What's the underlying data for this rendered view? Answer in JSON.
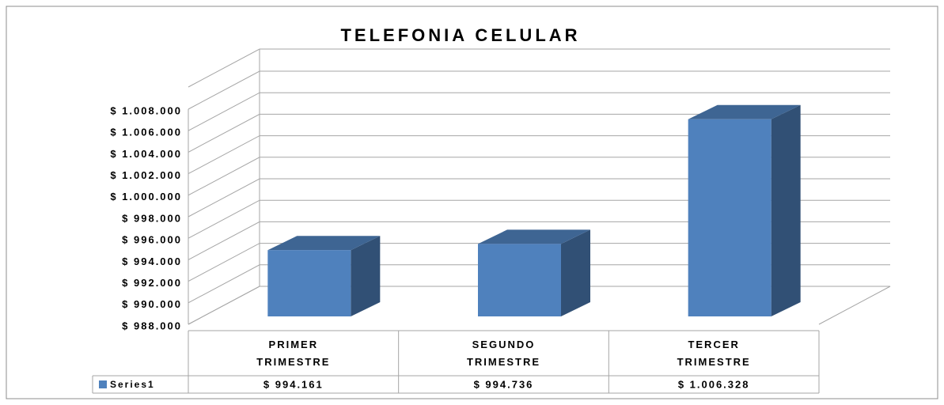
{
  "chart_data": {
    "type": "bar3d",
    "title": "TELEFONIA CELULAR",
    "categories": [
      "PRIMER TRIMESTRE",
      "SEGUNDO TRIMESTRE",
      "TERCER TRIMESTRE"
    ],
    "series": [
      {
        "name": "Series1",
        "color": "#4f81bd",
        "values": [
          994161,
          994736,
          1006328
        ],
        "value_labels": [
          "$ 994.161",
          "$ 994.736",
          "$ 1.006.328"
        ]
      }
    ],
    "ylim": [
      988000,
      1008000
    ],
    "yticks": [
      {
        "value": 988000,
        "label": "$ 988.000"
      },
      {
        "value": 990000,
        "label": "$ 990.000"
      },
      {
        "value": 992000,
        "label": "$ 992.000"
      },
      {
        "value": 994000,
        "label": "$ 994.000"
      },
      {
        "value": 996000,
        "label": "$ 996.000"
      },
      {
        "value": 998000,
        "label": "$ 998.000"
      },
      {
        "value": 1000000,
        "label": "$ 1.000.000"
      },
      {
        "value": 1002000,
        "label": "$ 1.002.000"
      },
      {
        "value": 1004000,
        "label": "$ 1.004.000"
      },
      {
        "value": 1006000,
        "label": "$ 1.006.000"
      },
      {
        "value": 1008000,
        "label": "$ 1.008.000"
      }
    ],
    "grid": true,
    "data_table": true
  }
}
